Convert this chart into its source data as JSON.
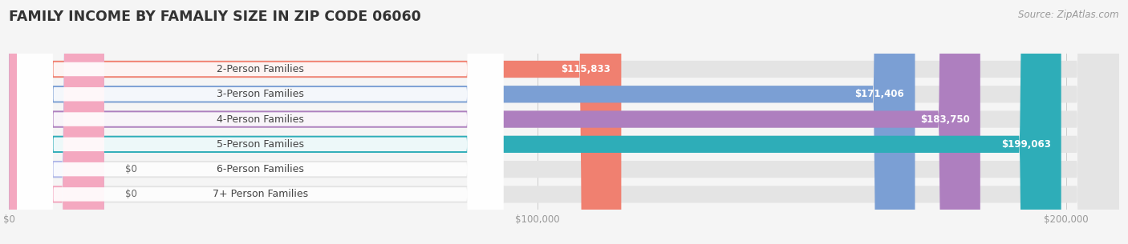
{
  "title": "FAMILY INCOME BY FAMALIY SIZE IN ZIP CODE 06060",
  "source": "Source: ZipAtlas.com",
  "categories": [
    "2-Person Families",
    "3-Person Families",
    "4-Person Families",
    "5-Person Families",
    "6-Person Families",
    "7+ Person Families"
  ],
  "values": [
    115833,
    171406,
    183750,
    199063,
    0,
    0
  ],
  "bar_colors": [
    "#F08070",
    "#7B9FD4",
    "#AE7FBF",
    "#2EADB8",
    "#B0B8E8",
    "#F4A8C0"
  ],
  "x_max": 210000,
  "x_ticks": [
    0,
    100000,
    200000
  ],
  "x_tick_labels": [
    "$0",
    "$100,000",
    "$200,000"
  ],
  "bg_color": "#f5f5f5",
  "bar_bg_color": "#e4e4e4",
  "title_fontsize": 12.5,
  "label_fontsize": 9,
  "value_fontsize": 8.5,
  "source_fontsize": 8.5,
  "zero_bar_width": 18000
}
